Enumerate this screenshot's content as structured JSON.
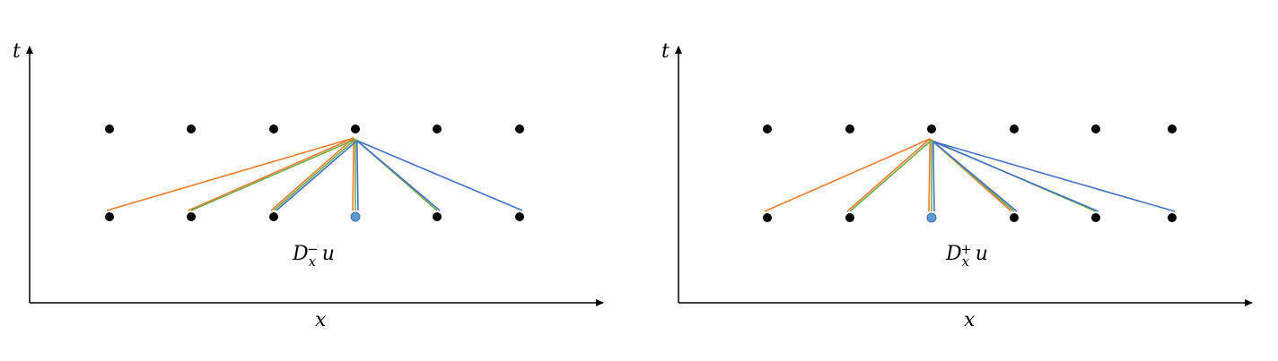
{
  "panels": [
    {
      "axis_x_label": "x",
      "axis_t_label": "t",
      "operator": {
        "base": "D",
        "sub": "x",
        "sup": "−",
        "arg": "u"
      },
      "top_row_count": 6,
      "bottom_row_count": 6,
      "apex_index": 3,
      "highlight_index": 3,
      "stencils": [
        {
          "color": "orange",
          "from": [
            0,
            1,
            2,
            3
          ]
        },
        {
          "color": "green",
          "from": [
            1,
            2,
            3,
            4
          ]
        },
        {
          "color": "blue",
          "from": [
            2,
            3,
            4,
            5
          ]
        }
      ]
    },
    {
      "axis_x_label": "x",
      "axis_t_label": "t",
      "operator": {
        "base": "D",
        "sub": "x",
        "sup": "+",
        "arg": "u"
      },
      "top_row_count": 6,
      "bottom_row_count": 6,
      "apex_index": 2,
      "highlight_index": 2,
      "stencils": [
        {
          "color": "orange",
          "from": [
            0,
            1,
            2,
            3
          ]
        },
        {
          "color": "green",
          "from": [
            1,
            2,
            3,
            4
          ]
        },
        {
          "color": "blue",
          "from": [
            2,
            3,
            4,
            5
          ]
        }
      ]
    }
  ],
  "colors": {
    "orange": "#ED7D31",
    "green": "#70AD47",
    "blue": "#4472C4",
    "dot": "#000000",
    "highlight_fill": "#5B9BD5",
    "highlight_stroke": "#41719C",
    "axis": "#000000"
  }
}
